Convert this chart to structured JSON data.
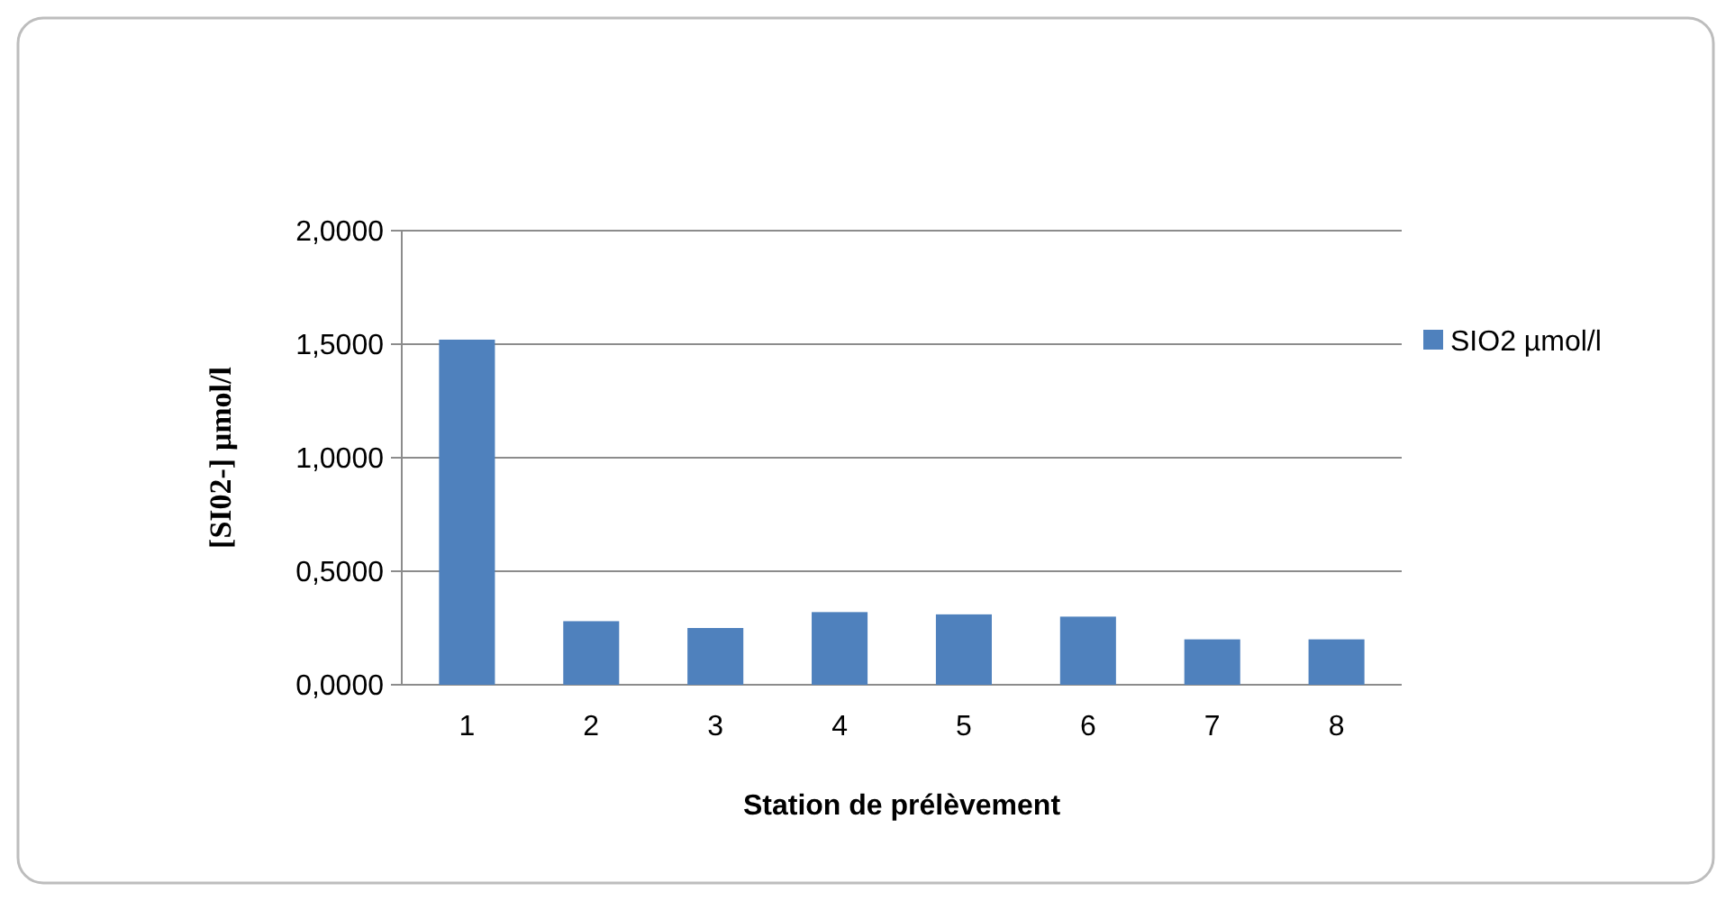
{
  "chart_data": {
    "type": "bar",
    "xlabel": "Station de prélèvement",
    "ylabel": "[SI02-] µmol/l",
    "categories": [
      "1",
      "2",
      "3",
      "4",
      "5",
      "6",
      "7",
      "8"
    ],
    "series": [
      {
        "name": "SIO2 µmol/l",
        "color": "#4f81bd",
        "values": [
          1.52,
          0.28,
          0.25,
          0.32,
          0.31,
          0.3,
          0.2,
          0.2
        ]
      }
    ],
    "ylim": [
      0,
      2
    ],
    "yticks": [
      {
        "value": 0,
        "label": "0,0000"
      },
      {
        "value": 0.5,
        "label": "0,5000"
      },
      {
        "value": 1,
        "label": "1,0000"
      },
      {
        "value": 1.5,
        "label": "1,5000"
      },
      {
        "value": 2,
        "label": "2,0000"
      }
    ],
    "grid": "y",
    "legend": "right"
  }
}
